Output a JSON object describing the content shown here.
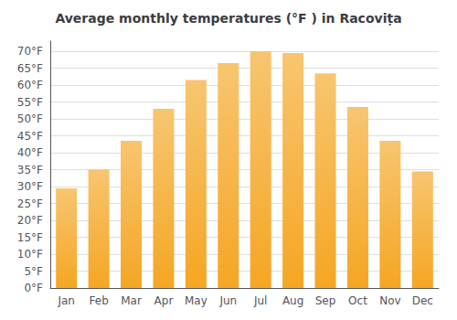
{
  "chart_data": {
    "type": "bar",
    "title": "Average monthly temperatures (°F ) in Racovița",
    "categories": [
      "Jan",
      "Feb",
      "Mar",
      "Apr",
      "May",
      "Jun",
      "Jul",
      "Aug",
      "Sep",
      "Oct",
      "Nov",
      "Dec"
    ],
    "values": [
      29.5,
      35.0,
      43.5,
      53.0,
      61.5,
      66.5,
      70.0,
      69.5,
      63.5,
      53.5,
      43.5,
      34.5
    ],
    "color": "#F5A623",
    "ylim": [
      0,
      73
    ],
    "yticks": [
      {
        "value": 0,
        "label": "0°F"
      },
      {
        "value": 5,
        "label": "5°F"
      },
      {
        "value": 10,
        "label": "10°F"
      },
      {
        "value": 15,
        "label": "15°F"
      },
      {
        "value": 20,
        "label": "20°F"
      },
      {
        "value": 25,
        "label": "25°F"
      },
      {
        "value": 30,
        "label": "30°F"
      },
      {
        "value": 35,
        "label": "35°F"
      },
      {
        "value": 40,
        "label": "40°F"
      },
      {
        "value": 45,
        "label": "45°F"
      },
      {
        "value": 50,
        "label": "50°F"
      },
      {
        "value": 55,
        "label": "55°F"
      },
      {
        "value": 60,
        "label": "60°F"
      },
      {
        "value": 65,
        "label": "65°F"
      },
      {
        "value": 70,
        "label": "70°F"
      }
    ],
    "grid": true
  }
}
